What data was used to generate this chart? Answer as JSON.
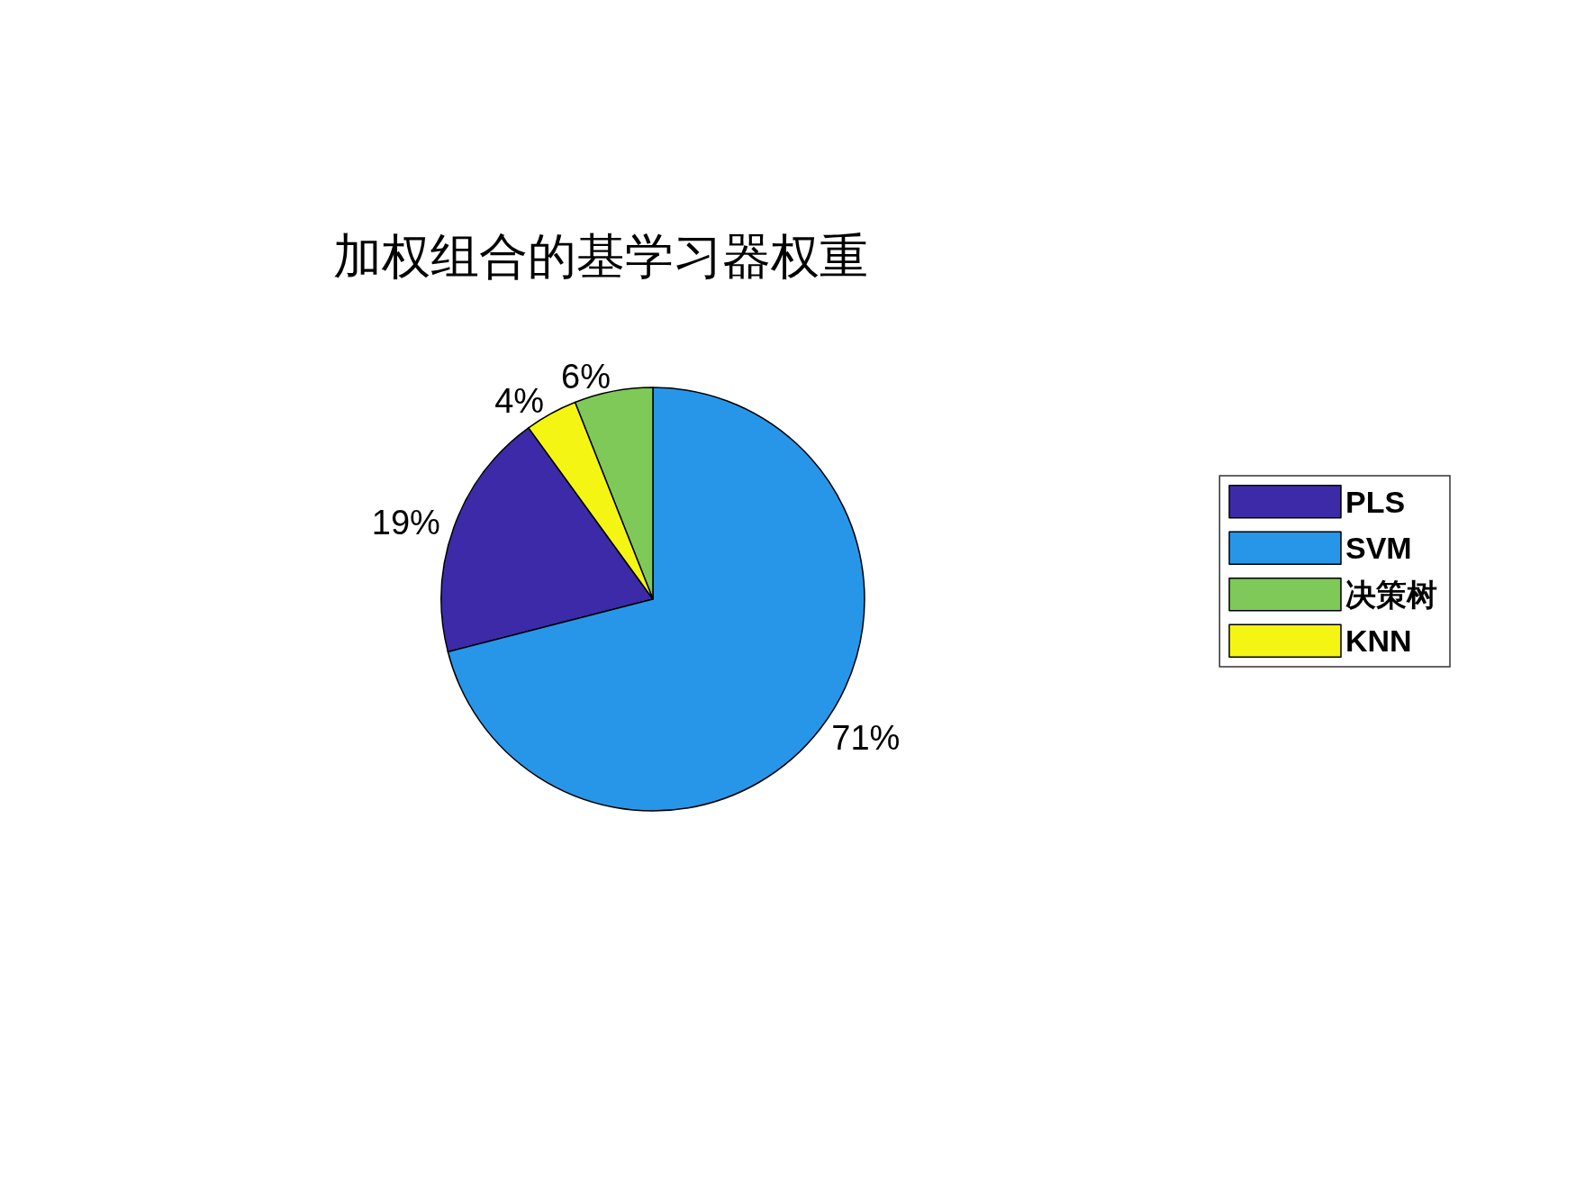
{
  "chart_data": {
    "type": "pie",
    "title": "加权组合的基学习器权重",
    "categories": [
      "PLS",
      "SVM",
      "决策树",
      "KNN"
    ],
    "values": [
      19,
      71,
      6,
      4
    ],
    "colors": [
      "#3c2aa8",
      "#2896e8",
      "#7ec958",
      "#f5f514"
    ],
    "value_labels": [
      "19%",
      "71%",
      "6%",
      "4%"
    ],
    "legend": "right"
  }
}
